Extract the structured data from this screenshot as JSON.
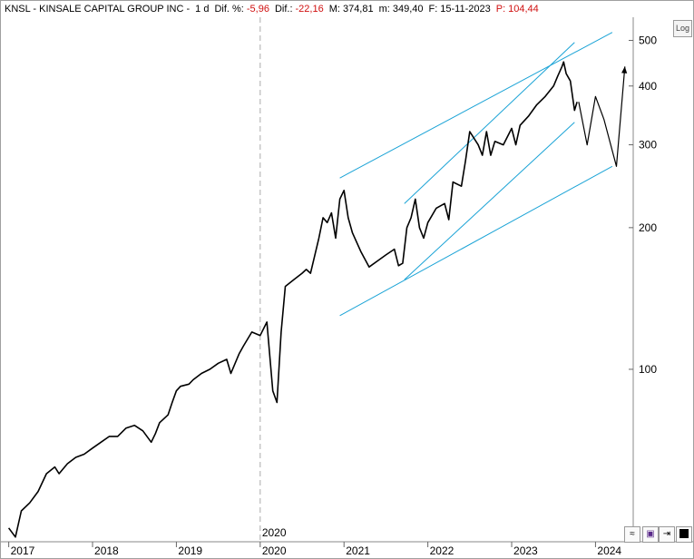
{
  "header": {
    "symbol": "KNSL - KINSALE CAPITAL GROUP INC -",
    "timeframe": "1 d",
    "dif_pct_label": "Dif. %:",
    "dif_pct_value": "-5,96",
    "dif_label": "Dif.:",
    "dif_value": "-22,16",
    "max_label": "M:",
    "max_value": "374,81",
    "min_label": "m:",
    "min_value": "349,40",
    "date_label": "F:",
    "date_value": "15-11-2023",
    "p_label": "P:",
    "p_value": "104,44"
  },
  "toolbar": {
    "log_label": "Log",
    "icons": [
      "wave-icon",
      "save-icon",
      "arrow-icon",
      "color-swatch-icon"
    ]
  },
  "colors": {
    "price": "#000000",
    "channel": "#1aa3d6",
    "grid": "#c8c8c8",
    "negative": "#d01010"
  },
  "chart_data": {
    "type": "line",
    "yscale": "log",
    "ylim": [
      43,
      560
    ],
    "xlim": [
      2016.95,
      2024.45
    ],
    "y_ticks": [
      100,
      200,
      300,
      400,
      500
    ],
    "y_tick_labels": [
      "100",
      "200",
      "300",
      "400",
      "500"
    ],
    "x_ticks": [
      2017,
      2018,
      2019,
      2020,
      2021,
      2022,
      2023,
      2024
    ],
    "x_tick_labels": [
      "2017",
      "2018",
      "2019",
      "2020",
      "2021",
      "2022",
      "2023",
      "2024"
    ],
    "marker_line": {
      "x": 2020.0,
      "label": "2020"
    },
    "series": [
      {
        "x": [
          2017.0,
          2017.08,
          2017.15,
          2017.25,
          2017.35,
          2017.45,
          2017.55,
          2017.6,
          2017.7,
          2017.8,
          2017.9,
          2018.0,
          2018.1,
          2018.2,
          2018.3,
          2018.4,
          2018.5,
          2018.6,
          2018.7,
          2018.75,
          2018.8,
          2018.9,
          2018.95,
          2019.0,
          2019.05,
          2019.15,
          2019.2,
          2019.3,
          2019.4,
          2019.5,
          2019.6,
          2019.65,
          2019.75,
          2019.8,
          2019.9,
          2020.0,
          2020.08,
          2020.15,
          2020.2,
          2020.25,
          2020.3,
          2020.4,
          2020.5,
          2020.55,
          2020.6,
          2020.7,
          2020.75,
          2020.8,
          2020.85,
          2020.9,
          2020.95,
          2021.0,
          2021.05,
          2021.1,
          2021.2,
          2021.3,
          2021.4,
          2021.5,
          2021.6,
          2021.65,
          2021.7,
          2021.75,
          2021.8,
          2021.85,
          2021.9,
          2021.95,
          2022.0,
          2022.1,
          2022.2,
          2022.25,
          2022.3,
          2022.4,
          2022.45,
          2022.5,
          2022.6,
          2022.65,
          2022.7,
          2022.75,
          2022.8,
          2022.9,
          2023.0,
          2023.05,
          2023.1,
          2023.2,
          2023.3,
          2023.4,
          2023.5,
          2023.55,
          2023.6,
          2023.62,
          2023.65,
          2023.7,
          2023.75,
          2023.78
        ],
        "y": [
          46,
          44,
          50,
          52,
          55,
          60,
          62,
          60,
          63,
          65,
          66,
          68,
          70,
          72,
          72,
          75,
          76,
          74,
          70,
          73,
          77,
          80,
          85,
          90,
          92,
          93,
          95,
          98,
          100,
          103,
          105,
          98,
          108,
          112,
          120,
          118,
          126,
          90,
          85,
          120,
          150,
          155,
          160,
          163,
          160,
          190,
          210,
          205,
          215,
          190,
          230,
          240,
          210,
          195,
          178,
          165,
          170,
          175,
          180,
          166,
          168,
          200,
          210,
          230,
          200,
          190,
          205,
          220,
          225,
          208,
          250,
          245,
          278,
          320,
          300,
          285,
          320,
          285,
          305,
          300,
          325,
          300,
          330,
          345,
          365,
          380,
          400,
          420,
          440,
          450,
          425,
          410,
          355,
          370
        ]
      },
      {
        "x": [
          2023.8,
          2023.9,
          2024.0,
          2024.1,
          2024.25,
          2024.35
        ],
        "y": [
          370,
          300,
          380,
          340,
          270,
          440
        ]
      }
    ],
    "channels": [
      {
        "x": [
          2020.95,
          2024.2
        ],
        "y": [
          130,
          270
        ]
      },
      {
        "x": [
          2020.95,
          2024.2
        ],
        "y": [
          255,
          520
        ]
      },
      {
        "x": [
          2021.72,
          2023.75
        ],
        "y": [
          155,
          335
        ]
      },
      {
        "x": [
          2021.72,
          2023.75
        ],
        "y": [
          225,
          495
        ]
      }
    ]
  }
}
